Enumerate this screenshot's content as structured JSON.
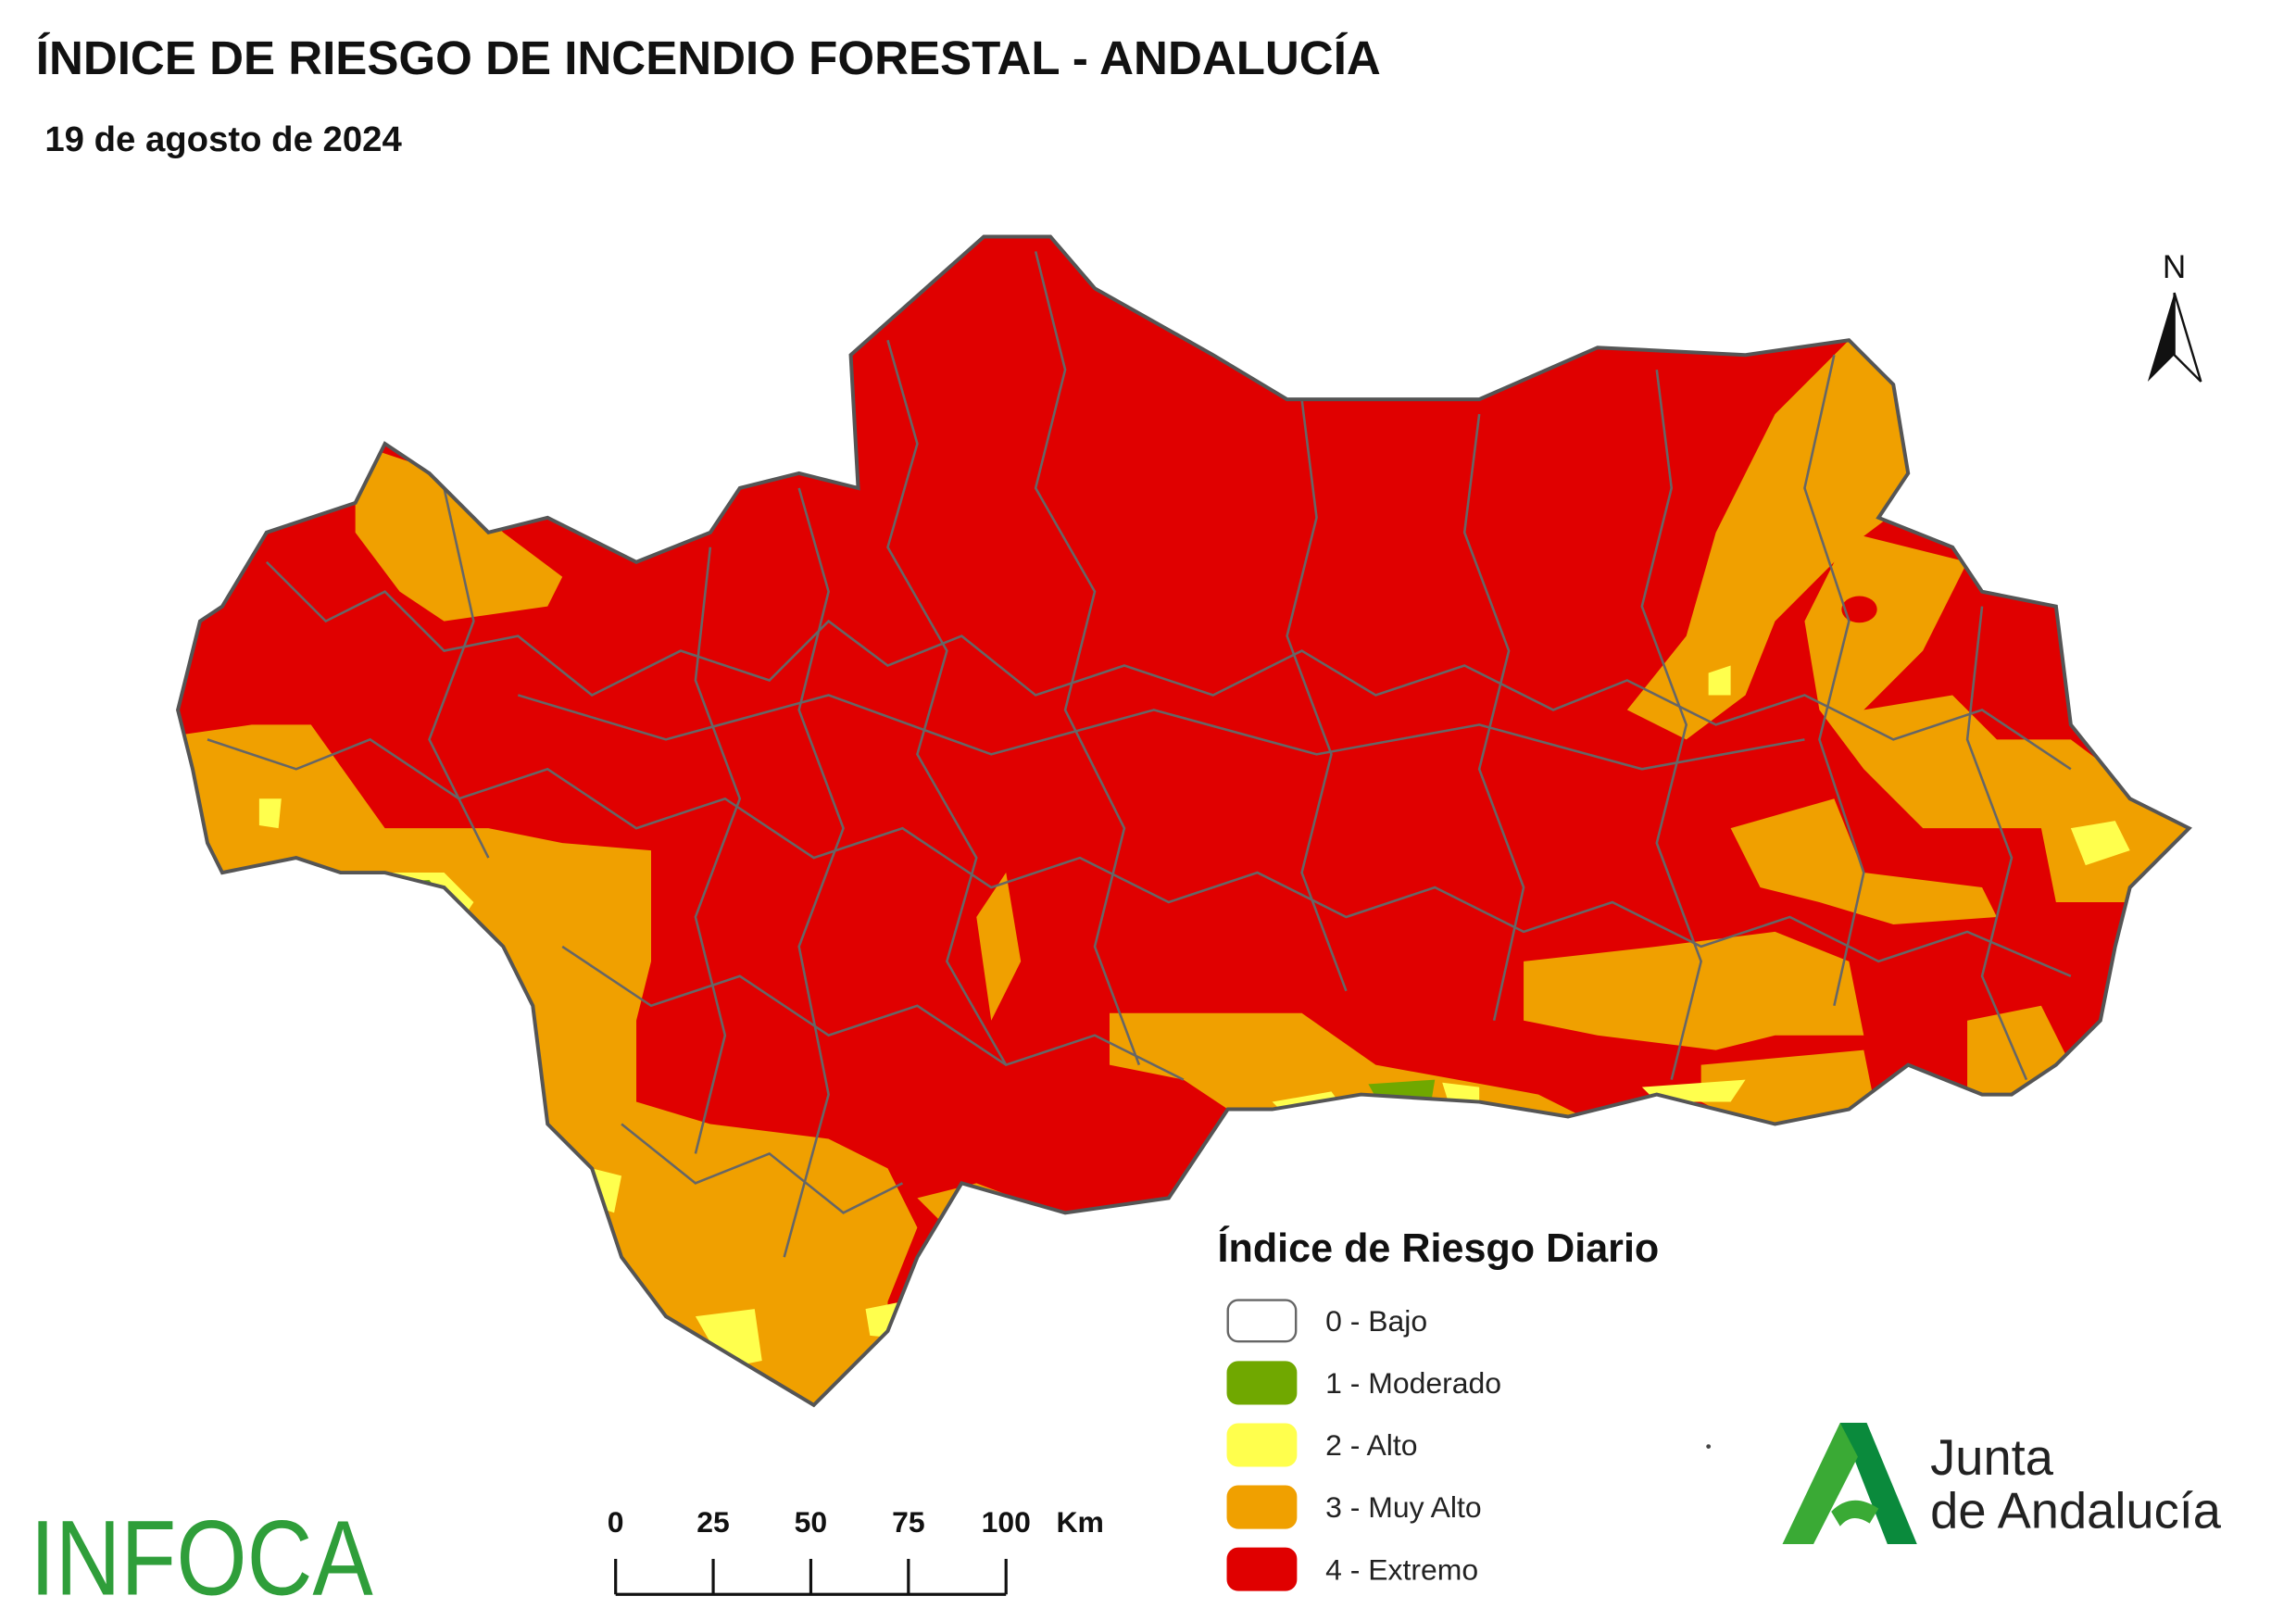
{
  "header": {
    "title": "ÍNDICE DE RIESGO DE INCENDIO FORESTAL - ANDALUCÍA",
    "subtitle": "19 de agosto de 2024"
  },
  "north": "N",
  "legend": {
    "title": "Índice de Riesgo Diario",
    "items": [
      {
        "label": "0 - Bajo",
        "color": "#ffffff"
      },
      {
        "label": "1 - Moderado",
        "color": "#70a800"
      },
      {
        "label": "2 - Alto",
        "color": "#ffff4d"
      },
      {
        "label": "3 - Muy Alto",
        "color": "#f0a000"
      },
      {
        "label": "4 - Extremo",
        "color": "#e00000"
      }
    ]
  },
  "scale_bar": {
    "ticks": [
      0,
      25,
      50,
      75,
      100
    ],
    "unit": "Km"
  },
  "logos": {
    "infoca": "INFOCA",
    "junta": [
      "Junta",
      "de Andalucía"
    ]
  }
}
